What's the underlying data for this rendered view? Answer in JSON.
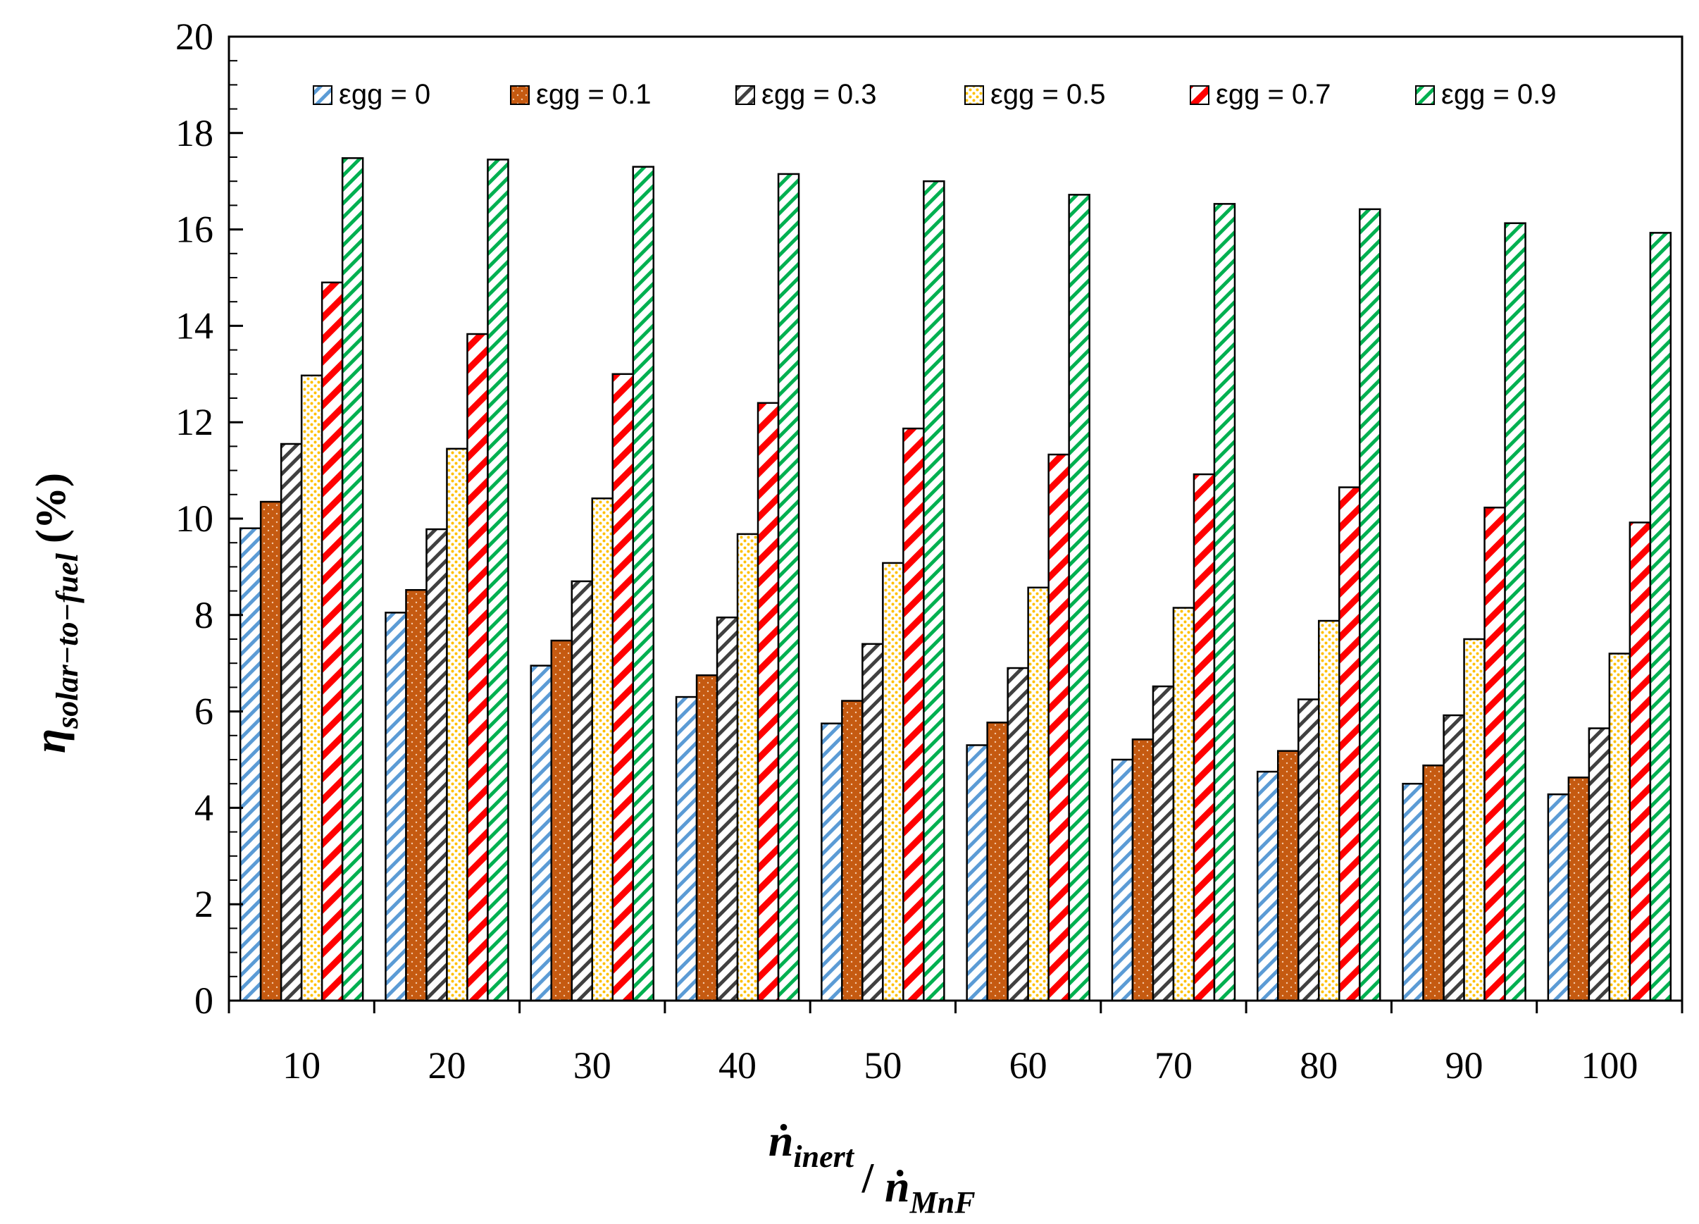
{
  "chart_data": {
    "type": "bar",
    "title": "",
    "categories": [
      "10",
      "20",
      "30",
      "40",
      "50",
      "60",
      "70",
      "80",
      "90",
      "100"
    ],
    "series": [
      {
        "name": "εgg = 0",
        "color": "#5B9BD5",
        "pattern": "diag-stripe",
        "values": [
          9.8,
          8.05,
          6.95,
          6.3,
          5.75,
          5.3,
          5.0,
          4.75,
          4.5,
          4.28
        ]
      },
      {
        "name": "εgg = 0.1",
        "color": "#C55A11",
        "pattern": "solid-dots",
        "values": [
          10.35,
          8.52,
          7.47,
          6.75,
          6.22,
          5.77,
          5.42,
          5.18,
          4.88,
          4.63
        ]
      },
      {
        "name": "εgg = 0.3",
        "color": "#404040",
        "pattern": "diag-stripe",
        "values": [
          11.55,
          9.78,
          8.7,
          7.95,
          7.4,
          6.9,
          6.52,
          6.25,
          5.92,
          5.65
        ]
      },
      {
        "name": "εgg = 0.5",
        "color": "#FFC000",
        "pattern": "dots",
        "values": [
          12.97,
          11.45,
          10.42,
          9.68,
          9.08,
          8.57,
          8.15,
          7.88,
          7.5,
          7.2
        ]
      },
      {
        "name": "εgg = 0.7",
        "color": "#FF0000",
        "pattern": "wide-stripe",
        "values": [
          14.9,
          13.83,
          13.0,
          12.4,
          11.87,
          11.33,
          10.92,
          10.65,
          10.23,
          9.92
        ]
      },
      {
        "name": "εgg = 0.9",
        "color": "#00B050",
        "pattern": "diag-stripe",
        "values": [
          17.48,
          17.45,
          17.3,
          17.15,
          17.0,
          16.72,
          16.53,
          16.42,
          16.13,
          15.93
        ]
      }
    ],
    "y_ticks": [
      "0",
      "2",
      "4",
      "6",
      "8",
      "10",
      "12",
      "14",
      "16",
      "18",
      "20"
    ],
    "ylim": [
      0,
      20
    ],
    "ylabel": {
      "main": "η",
      "sub": "solar−to−fuel",
      "unit": "(%)"
    },
    "xlabel": {
      "num_main": "ṅ",
      "num_sub": "inert",
      "slash": "/",
      "den_main": "ṅ",
      "den_sub": "MnF"
    },
    "legend_position": "top"
  }
}
